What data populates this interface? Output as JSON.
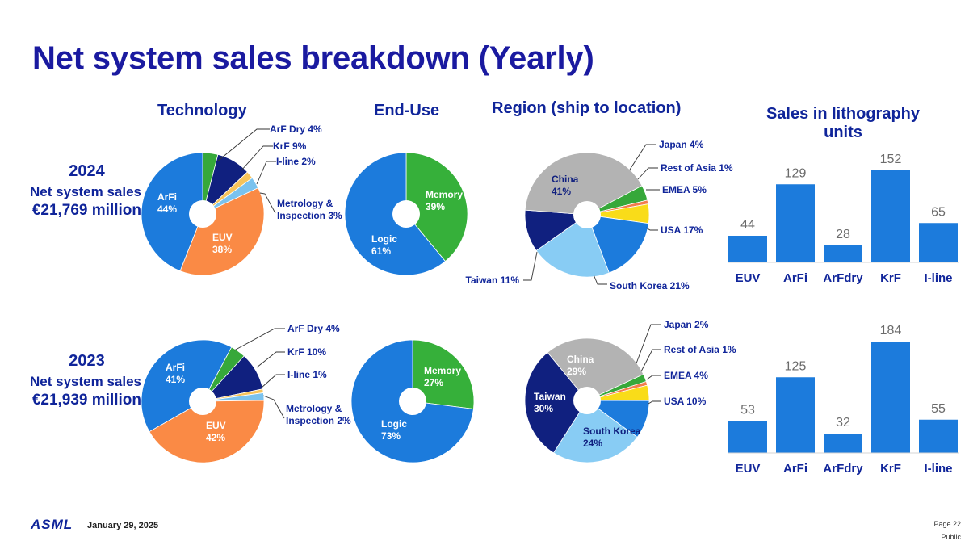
{
  "title": "Net system sales breakdown (Yearly)",
  "headings": {
    "technology": "Technology",
    "end_use": "End-Use",
    "region": "Region (ship to location)",
    "units_line1": "Sales in lithography",
    "units_line2": "units"
  },
  "years": [
    {
      "year": "2024",
      "label": "Net system sales",
      "amount": "€21,769 million"
    },
    {
      "year": "2023",
      "label": "Net system sales",
      "amount": "€21,939 million"
    }
  ],
  "footer": {
    "logo": "ASML",
    "date": "January 29, 2025",
    "page": "Page 22",
    "classification": "Public"
  },
  "colors": {
    "title": "#1a1aa0",
    "euv": "#fa8a45",
    "arfi": "#1c7bdc",
    "arfdry": "#36a83a",
    "krf": "#10207f",
    "iline": "#f7c35a",
    "metrology": "#7ac2ee",
    "memory": "#36b03a",
    "logic": "#1c7bdc",
    "china": "#b3b3b3",
    "japan": "#36a83a",
    "rest_of_asia": "#f27c4c",
    "emea": "#f9dc19",
    "usa": "#1c7bdc",
    "south_korea": "#88ccf4",
    "taiwan": "#10207f",
    "bar": "#1c7bdc"
  },
  "chart_data": [
    {
      "type": "pie",
      "group": "Technology",
      "year": "2024",
      "slices": [
        {
          "label": "ArF Dry",
          "value": 4,
          "text": "ArF Dry 4%",
          "color": "#36a83a"
        },
        {
          "label": "KrF",
          "value": 9,
          "text": "KrF 9%",
          "color": "#10207f"
        },
        {
          "label": "I-line",
          "value": 2,
          "text": "I-line 2%",
          "color": "#f7c35a"
        },
        {
          "label": "Metrology & Inspection",
          "value": 3,
          "text": "Metrology &",
          "text2": "Inspection 3%",
          "color": "#7ac2ee"
        },
        {
          "label": "EUV",
          "value": 38,
          "text": "EUV",
          "text2": "38%",
          "color": "#fa8a45"
        },
        {
          "label": "ArFi",
          "value": 44,
          "text": "ArFi",
          "text2": "44%",
          "color": "#1c7bdc"
        }
      ]
    },
    {
      "type": "pie",
      "group": "End-Use",
      "year": "2024",
      "slices": [
        {
          "label": "Memory",
          "value": 39,
          "text": "Memory",
          "text2": "39%",
          "color": "#36b03a"
        },
        {
          "label": "Logic",
          "value": 61,
          "text": "Logic",
          "text2": "61%",
          "color": "#1c7bdc"
        }
      ]
    },
    {
      "type": "pie",
      "group": "Region (ship to location)",
      "year": "2024",
      "slices": [
        {
          "label": "Japan",
          "value": 4,
          "text": "Japan 4%",
          "color": "#36a83a"
        },
        {
          "label": "Rest of Asia",
          "value": 1,
          "text": "Rest of Asia 1%",
          "color": "#f27c4c"
        },
        {
          "label": "EMEA",
          "value": 5,
          "text": "EMEA 5%",
          "color": "#f9dc19"
        },
        {
          "label": "USA",
          "value": 17,
          "text": "USA 17%",
          "color": "#1c7bdc"
        },
        {
          "label": "South Korea",
          "value": 21,
          "text": "South Korea 21%",
          "color": "#88ccf4"
        },
        {
          "label": "Taiwan",
          "value": 11,
          "text": "Taiwan 11%",
          "color": "#10207f"
        },
        {
          "label": "China",
          "value": 41,
          "text": "China",
          "text2": "41%",
          "color": "#b3b3b3"
        }
      ]
    },
    {
      "type": "bar",
      "group": "Sales in lithography units",
      "year": "2024",
      "categories": [
        "EUV",
        "ArFi",
        "ArFdry",
        "KrF",
        "I-line"
      ],
      "values": [
        44,
        129,
        28,
        152,
        65
      ],
      "ylim": [
        0,
        200
      ]
    },
    {
      "type": "pie",
      "group": "Technology",
      "year": "2023",
      "slices": [
        {
          "label": "ArF Dry",
          "value": 4,
          "text": "ArF Dry 4%",
          "color": "#36a83a"
        },
        {
          "label": "KrF",
          "value": 10,
          "text": "KrF 10%",
          "color": "#10207f"
        },
        {
          "label": "I-line",
          "value": 1,
          "text": "I-line 1%",
          "color": "#f7c35a"
        },
        {
          "label": "Metrology & Inspection",
          "value": 2,
          "text": "Metrology &",
          "text2": "Inspection 2%",
          "color": "#7ac2ee"
        },
        {
          "label": "EUV",
          "value": 42,
          "text": "EUV",
          "text2": "42%",
          "color": "#fa8a45"
        },
        {
          "label": "ArFi",
          "value": 41,
          "text": "ArFi",
          "text2": "41%",
          "color": "#1c7bdc"
        }
      ]
    },
    {
      "type": "pie",
      "group": "End-Use",
      "year": "2023",
      "slices": [
        {
          "label": "Memory",
          "value": 27,
          "text": "Memory",
          "text2": "27%",
          "color": "#36b03a"
        },
        {
          "label": "Logic",
          "value": 73,
          "text": "Logic",
          "text2": "73%",
          "color": "#1c7bdc"
        }
      ]
    },
    {
      "type": "pie",
      "group": "Region (ship to location)",
      "year": "2023",
      "slices": [
        {
          "label": "Japan",
          "value": 2,
          "text": "Japan 2%",
          "color": "#36a83a"
        },
        {
          "label": "Rest of Asia",
          "value": 1,
          "text": "Rest of Asia 1%",
          "color": "#f27c4c"
        },
        {
          "label": "EMEA",
          "value": 4,
          "text": "EMEA 4%",
          "color": "#f9dc19"
        },
        {
          "label": "USA",
          "value": 10,
          "text": "USA 10%",
          "color": "#1c7bdc"
        },
        {
          "label": "South Korea",
          "value": 24,
          "text": "South Korea",
          "text2": "24%",
          "color": "#88ccf4"
        },
        {
          "label": "Taiwan",
          "value": 30,
          "text": "Taiwan",
          "text2": "30%",
          "color": "#10207f"
        },
        {
          "label": "China",
          "value": 29,
          "text": "China",
          "text2": "29%",
          "color": "#b3b3b3"
        }
      ]
    },
    {
      "type": "bar",
      "group": "Sales in lithography units",
      "year": "2023",
      "categories": [
        "EUV",
        "ArFi",
        "ArFdry",
        "KrF",
        "I-line"
      ],
      "values": [
        53,
        125,
        32,
        184,
        55
      ],
      "ylim": [
        0,
        200
      ]
    }
  ]
}
